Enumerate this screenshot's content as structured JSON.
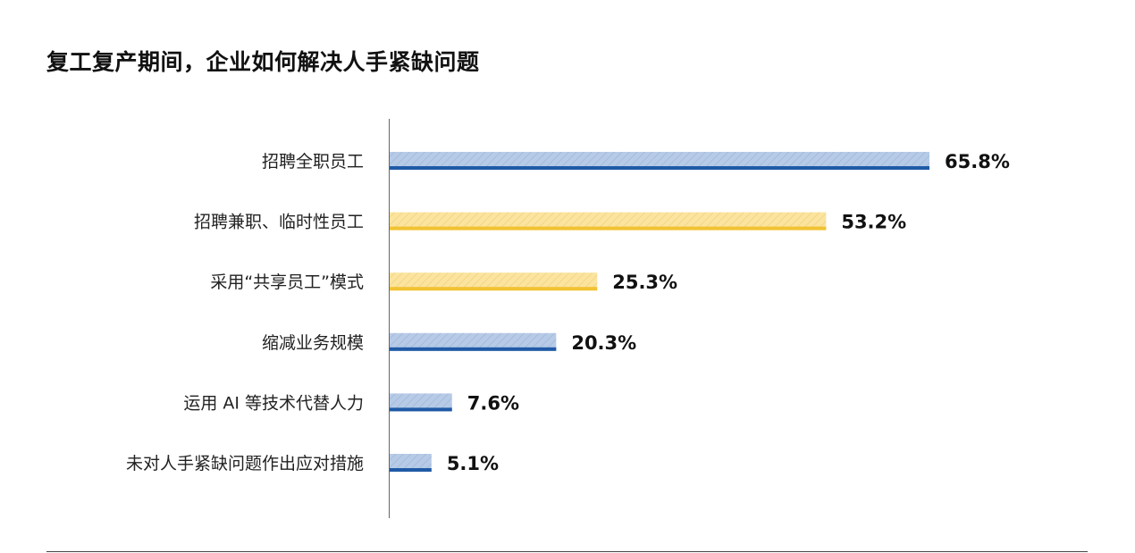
{
  "chart_data": {
    "type": "bar",
    "orientation": "horizontal",
    "title": "复工复产期间，企业如何解决人手紧缺问题",
    "categories": [
      "招聘全职员工",
      "招聘兼职、临时性员工",
      "采用“共享员工”模式",
      "缩减业务规模",
      "运用 AI 等技术代替人力",
      "未对人手紧缺问题作出应对措施"
    ],
    "values": [
      65.8,
      53.2,
      25.3,
      20.3,
      7.6,
      5.1
    ],
    "value_labels": [
      "65.8%",
      "53.2%",
      "25.3%",
      "20.3%",
      "7.6%",
      "5.1%"
    ],
    "bar_styles": [
      "blue",
      "yellow",
      "yellow",
      "blue",
      "blue",
      "blue"
    ],
    "colors": {
      "blue_fill": "#b7cbe6",
      "blue_line": "#1f5aa6",
      "yellow_fill": "#fbe4a0",
      "yellow_line": "#f1c232"
    },
    "xlim": [
      0,
      100
    ],
    "grid": false,
    "legend": "none"
  }
}
